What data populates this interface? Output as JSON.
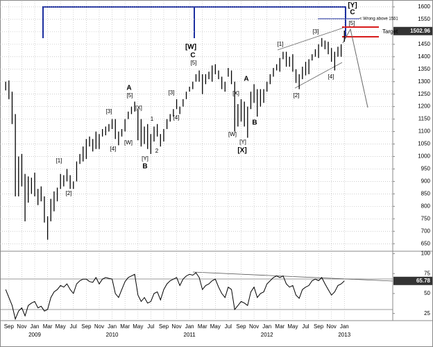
{
  "chart_data": [
    {
      "type": "ohlc",
      "high": [
        1300,
        1305,
        1260,
        1170,
        1000,
        1010,
        930,
        920,
        915,
        935,
        870,
        880,
        840,
        760,
        830,
        860,
        875,
        930,
        925,
        950,
        925,
        900,
        980,
        1010,
        1040,
        1070,
        1080,
        1070,
        1100,
        1090,
        1110,
        1120,
        1130,
        1150,
        1150,
        1100,
        1110,
        1150,
        1180,
        1200,
        1220,
        1190,
        1150,
        1120,
        1130,
        1090,
        1120,
        1130,
        1090,
        1110,
        1150,
        1170,
        1190,
        1230,
        1200,
        1230,
        1260,
        1280,
        1300,
        1330,
        1345,
        1330,
        1330,
        1340,
        1365,
        1370,
        1345,
        1320,
        1300,
        1355,
        1345,
        1300,
        1210,
        1230,
        1220,
        1200,
        1260,
        1290,
        1270,
        1270,
        1270,
        1300,
        1330,
        1355,
        1370,
        1395,
        1420,
        1420,
        1400,
        1410,
        1350,
        1330,
        1360,
        1380,
        1390,
        1410,
        1430,
        1450,
        1475,
        1465,
        1460,
        1435,
        1420,
        1440,
        1450,
        1505
      ],
      "low": [
        1265,
        1230,
        1130,
        840,
        840,
        880,
        740,
        815,
        850,
        840,
        805,
        820,
        735,
        666,
        740,
        780,
        820,
        870,
        880,
        900,
        870,
        870,
        900,
        970,
        980,
        990,
        1040,
        1020,
        1030,
        1030,
        1080,
        1085,
        1100,
        1110,
        1070,
        1045,
        1080,
        1100,
        1150,
        1170,
        1180,
        1065,
        1040,
        1050,
        1030,
        1010,
        1060,
        1080,
        1040,
        1060,
        1110,
        1140,
        1160,
        1190,
        1170,
        1200,
        1230,
        1260,
        1270,
        1300,
        1300,
        1250,
        1290,
        1310,
        1300,
        1330,
        1310,
        1270,
        1260,
        1320,
        1290,
        1100,
        1120,
        1140,
        1120,
        1075,
        1190,
        1215,
        1160,
        1200,
        1215,
        1260,
        1290,
        1320,
        1345,
        1340,
        1390,
        1360,
        1360,
        1340,
        1295,
        1270,
        1310,
        1325,
        1330,
        1385,
        1400,
        1395,
        1440,
        1430,
        1410,
        1380,
        1345,
        1400,
        1400,
        1460
      ],
      "color": "#000000",
      "ylim": [
        620,
        1622
      ],
      "yticks": [
        650,
        700,
        750,
        800,
        850,
        900,
        950,
        1000,
        1050,
        1100,
        1150,
        1200,
        1250,
        1300,
        1350,
        1400,
        1450,
        1500,
        1550,
        1600
      ],
      "xlim": [
        -1.76,
        120
      ],
      "xticks": [
        {
          "value": 1,
          "label": "Sep"
        },
        {
          "value": 5,
          "label": "Nov"
        },
        {
          "value": 9,
          "label": "Jan"
        },
        {
          "value": 13,
          "label": "Mar"
        },
        {
          "value": 17,
          "label": "May"
        },
        {
          "value": 21,
          "label": "Jul"
        },
        {
          "value": 25,
          "label": "Sep"
        },
        {
          "value": 29,
          "label": "Nov"
        },
        {
          "value": 33,
          "label": "Jan"
        },
        {
          "value": 37,
          "label": "Mar"
        },
        {
          "value": 41,
          "label": "May"
        },
        {
          "value": 45,
          "label": "Jul"
        },
        {
          "value": 49,
          "label": "Sep"
        },
        {
          "value": 53,
          "label": "Nov"
        },
        {
          "value": 57,
          "label": "Jan"
        },
        {
          "value": 61,
          "label": "Mar"
        },
        {
          "value": 65,
          "label": "May"
        },
        {
          "value": 69,
          "label": "Jul"
        },
        {
          "value": 73,
          "label": "Sep"
        },
        {
          "value": 77,
          "label": "Nov"
        },
        {
          "value": 81,
          "label": "Jan"
        },
        {
          "value": 85,
          "label": "Mar"
        },
        {
          "value": 89,
          "label": "May"
        },
        {
          "value": 93,
          "label": "Jul"
        },
        {
          "value": 97,
          "label": "Sep"
        },
        {
          "value": 101,
          "label": "Nov"
        },
        {
          "value": 105,
          "label": "Jan"
        }
      ],
      "xyears": [
        {
          "value": 9,
          "label": "2009"
        },
        {
          "value": 33,
          "label": "2010"
        },
        {
          "value": 57,
          "label": "2011"
        },
        {
          "value": 81,
          "label": "2012"
        },
        {
          "value": 105,
          "label": "2013"
        }
      ],
      "grid": true,
      "last_value": 1502.96,
      "annotations": [
        "[1]",
        "[2]",
        "[3]",
        "[4]",
        "A",
        "[5]",
        "[X]",
        "[W]",
        "1",
        "2",
        "[Y]",
        "B",
        "[3]",
        "[4]",
        "[W]",
        "C",
        "[5]",
        "A",
        "[X]",
        "[W]",
        "B",
        "[Y]",
        "[X]",
        "[1]",
        "[2]",
        "[3]",
        "[4]",
        "[5]",
        "[Y]",
        "C",
        "< Wrong above 1551",
        "Target"
      ]
    },
    {
      "type": "line",
      "values": [
        55,
        45,
        35,
        18,
        28,
        32,
        22,
        35,
        38,
        40,
        32,
        34,
        28,
        30,
        45,
        52,
        55,
        60,
        58,
        62,
        55,
        50,
        62,
        66,
        68,
        68,
        65,
        64,
        70,
        62,
        68,
        70,
        69,
        68,
        50,
        45,
        55,
        65,
        70,
        72,
        74,
        48,
        40,
        45,
        38,
        40,
        50,
        52,
        42,
        55,
        62,
        66,
        68,
        70,
        60,
        68,
        72,
        74,
        73,
        76,
        70,
        55,
        60,
        62,
        66,
        68,
        58,
        50,
        45,
        58,
        55,
        30,
        35,
        40,
        38,
        35,
        52,
        58,
        45,
        50,
        52,
        62,
        66,
        70,
        72,
        70,
        72,
        62,
        58,
        60,
        48,
        44,
        55,
        58,
        60,
        66,
        68,
        66,
        70,
        62,
        55,
        48,
        52,
        60,
        62,
        65.78
      ],
      "color": "#000000",
      "ylim": [
        16,
        103
      ],
      "yticks": [
        25,
        50,
        75,
        100
      ],
      "last_value": 65.78
    }
  ]
}
